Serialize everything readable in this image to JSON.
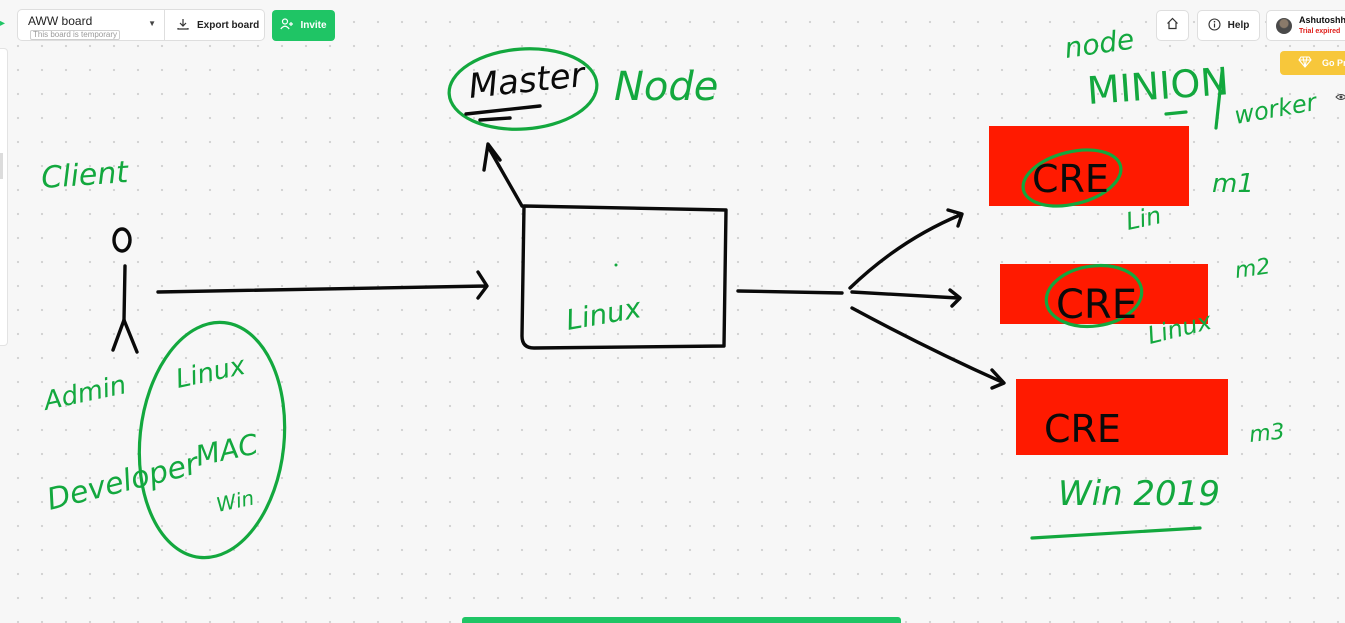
{
  "toolbar": {
    "board_name": "AWW board",
    "board_note": "This board is temporary",
    "export_label": "Export board",
    "invite_label": "Invite"
  },
  "topright": {
    "help_label": "Help",
    "user_name": "Ashutoshh",
    "user_status": "Trial expired",
    "gopro_label": "Go Pro"
  },
  "canvas": {
    "labels": {
      "client": "Client",
      "admin": "Admin",
      "developer": "Developer",
      "dev_linux": "Linux",
      "dev_mac": "MAC",
      "dev_win": "Win",
      "master": "Master",
      "node": "Node",
      "center_linux": "Linux",
      "node_top": "node",
      "minion": "MINION",
      "worker": "worker",
      "cre1": "CRE",
      "cre2": "CRE",
      "cre3": "CRE",
      "lin1": "Lin",
      "lin2": "Linux",
      "win2019": "Win 2019",
      "m1": "m1",
      "m2": "m2",
      "m3": "m3"
    },
    "colors": {
      "marker_green": "#13a83e",
      "marker_black": "#0a0a0a",
      "box_red": "#ff1a00",
      "brand_green": "#1fc565"
    }
  }
}
